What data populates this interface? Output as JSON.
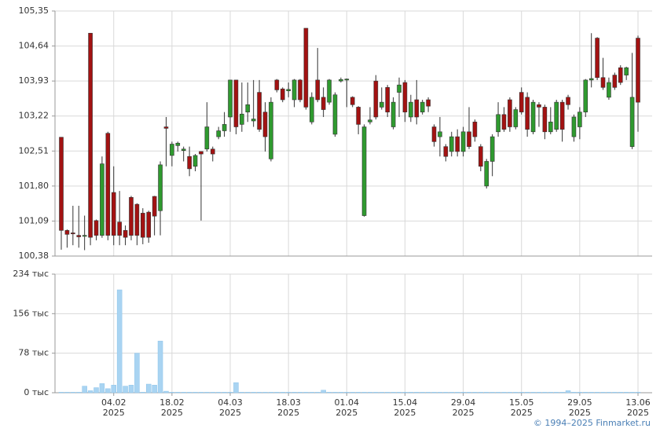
{
  "chart_data": {
    "type": "candlestick",
    "categories": [
      null,
      null,
      null,
      null,
      null,
      null,
      null,
      null,
      null,
      "04.02\n2025",
      null,
      null,
      null,
      null,
      null,
      null,
      null,
      null,
      null,
      "18.02\n2025",
      null,
      null,
      null,
      null,
      null,
      null,
      null,
      null,
      null,
      "04.03\n2025",
      null,
      null,
      null,
      null,
      null,
      null,
      null,
      null,
      null,
      "18.03\n2025",
      null,
      null,
      null,
      null,
      null,
      null,
      null,
      null,
      null,
      "01.04\n2025",
      null,
      null,
      null,
      null,
      null,
      null,
      null,
      null,
      null,
      "15.04\n2025",
      null,
      null,
      null,
      null,
      null,
      null,
      null,
      null,
      null,
      "29.04\n2025",
      null,
      null,
      null,
      null,
      null,
      null,
      null,
      null,
      null,
      "15.05\n2025",
      null,
      null,
      null,
      null,
      null,
      null,
      null,
      null,
      null,
      "29.05\n2025",
      null,
      null,
      null,
      null,
      null,
      null,
      null,
      null,
      null,
      "13.06\n2025"
    ],
    "open": [
      102.79,
      100.9,
      100.85,
      100.8,
      100.78,
      104.9,
      101.1,
      100.8,
      102.87,
      101.67,
      101.07,
      100.9,
      101.57,
      101.43,
      101.25,
      101.27,
      101.59,
      101.3,
      103.0,
      102.42,
      102.62,
      102.52,
      102.4,
      102.2,
      102.5,
      102.55,
      102.55,
      102.8,
      102.92,
      103.2,
      103.95,
      103.05,
      103.3,
      103.12,
      103.7,
      103.3,
      102.35,
      103.95,
      103.77,
      103.73,
      103.55,
      103.95,
      105.0,
      103.1,
      103.95,
      103.6,
      103.5,
      102.85,
      103.93,
      103.95,
      103.6,
      103.4,
      101.2,
      103.1,
      103.93,
      103.4,
      103.8,
      103.0,
      103.7,
      103.9,
      103.2,
      103.55,
      103.3,
      103.55,
      103.0,
      102.8,
      102.6,
      102.5,
      102.8,
      102.5,
      102.9,
      103.1,
      102.6,
      101.8,
      102.3,
      102.9,
      103.25,
      103.55,
      103.0,
      103.7,
      103.6,
      102.9,
      103.45,
      103.4,
      102.9,
      102.95,
      103.5,
      103.6,
      102.8,
      103.0,
      103.3,
      103.95,
      104.8,
      104.0,
      103.6,
      104.05,
      104.2,
      104.05,
      102.6,
      104.8
    ],
    "high": [
      102.79,
      100.92,
      101.4,
      101.4,
      101.2,
      104.9,
      101.12,
      102.4,
      102.9,
      102.2,
      101.7,
      101.0,
      101.6,
      101.45,
      101.35,
      101.3,
      101.6,
      102.3,
      103.2,
      102.7,
      102.7,
      102.6,
      102.6,
      102.45,
      102.5,
      103.5,
      102.6,
      103.0,
      103.3,
      103.95,
      103.95,
      103.9,
      103.9,
      103.95,
      103.95,
      103.5,
      103.6,
      103.97,
      103.8,
      103.9,
      103.97,
      103.97,
      105.0,
      103.7,
      104.6,
      103.8,
      103.97,
      103.7,
      104.0,
      103.98,
      103.62,
      103.42,
      103.05,
      103.4,
      104.05,
      103.8,
      103.85,
      103.6,
      104.0,
      103.95,
      103.65,
      103.95,
      103.55,
      103.6,
      103.05,
      103.2,
      102.65,
      102.9,
      102.95,
      103.0,
      103.4,
      103.15,
      102.65,
      102.35,
      102.85,
      103.5,
      103.4,
      103.6,
      103.4,
      103.8,
      103.7,
      103.55,
      103.5,
      103.45,
      103.4,
      103.55,
      103.55,
      103.65,
      103.25,
      103.4,
      103.97,
      104.9,
      104.82,
      104.4,
      104.0,
      104.1,
      104.25,
      104.22,
      104.5,
      104.85
    ],
    "low": [
      100.51,
      100.55,
      100.6,
      100.55,
      100.5,
      100.6,
      100.7,
      100.75,
      100.7,
      100.6,
      100.6,
      100.6,
      100.7,
      100.6,
      100.62,
      100.65,
      100.8,
      100.8,
      102.2,
      102.2,
      102.5,
      102.3,
      102.0,
      102.1,
      101.1,
      102.5,
      102.3,
      102.75,
      102.8,
      102.9,
      102.85,
      102.9,
      103.1,
      103.0,
      102.9,
      102.5,
      102.3,
      103.7,
      103.5,
      103.6,
      103.4,
      103.5,
      103.35,
      103.05,
      103.5,
      103.2,
      103.45,
      102.8,
      103.9,
      103.4,
      103.4,
      102.85,
      101.18,
      103.05,
      103.15,
      103.35,
      103.2,
      102.95,
      103.2,
      103.1,
      103.1,
      103.05,
      103.25,
      103.3,
      102.6,
      102.4,
      102.3,
      102.4,
      102.4,
      102.4,
      102.55,
      102.7,
      102.1,
      101.75,
      102.0,
      102.8,
      102.9,
      102.9,
      102.95,
      103.25,
      102.8,
      102.85,
      103.0,
      102.75,
      102.85,
      102.9,
      102.7,
      103.35,
      102.7,
      102.75,
      103.2,
      103.8,
      103.95,
      103.75,
      103.55,
      103.75,
      103.85,
      103.95,
      102.55,
      102.9
    ],
    "close": [
      100.9,
      100.82,
      100.83,
      100.77,
      100.8,
      100.76,
      100.8,
      102.25,
      100.8,
      100.8,
      100.8,
      100.76,
      100.8,
      100.8,
      100.76,
      100.76,
      101.19,
      102.23,
      102.97,
      102.65,
      102.67,
      102.55,
      102.15,
      102.42,
      102.45,
      103.0,
      102.45,
      102.92,
      103.05,
      103.95,
      103.0,
      103.26,
      103.45,
      103.16,
      102.95,
      102.8,
      103.5,
      103.75,
      103.55,
      103.76,
      103.95,
      103.55,
      103.4,
      103.6,
      103.55,
      103.35,
      103.95,
      103.65,
      103.96,
      103.97,
      103.45,
      103.05,
      103.0,
      103.14,
      103.2,
      103.5,
      103.3,
      103.5,
      103.85,
      103.3,
      103.5,
      103.2,
      103.5,
      103.42,
      102.7,
      102.9,
      102.4,
      102.8,
      102.5,
      102.9,
      102.6,
      102.8,
      102.2,
      102.3,
      102.8,
      103.25,
      102.95,
      103.0,
      103.35,
      103.3,
      102.95,
      103.5,
      103.4,
      102.9,
      103.1,
      103.5,
      102.95,
      103.45,
      103.2,
      103.3,
      103.95,
      103.98,
      104.0,
      103.8,
      103.9,
      103.8,
      103.9,
      104.2,
      103.6,
      103.5
    ],
    "up_color": "#2f9a2f",
    "down_color": "#a31212",
    "ylim": [
      100.38,
      105.35
    ],
    "yticks": [
      {
        "value": 100.38,
        "label": "100,38"
      },
      {
        "value": 101.09,
        "label": "101,09"
      },
      {
        "value": 101.8,
        "label": "101,80"
      },
      {
        "value": 102.51,
        "label": "102,51"
      },
      {
        "value": 103.22,
        "label": "103,22"
      },
      {
        "value": 103.93,
        "label": "103,93"
      },
      {
        "value": 104.64,
        "label": "104,64"
      },
      {
        "value": 105.35,
        "label": "105,35"
      }
    ],
    "volume": {
      "color": "#a9d4f2",
      "values": [
        1,
        1,
        1,
        1,
        13,
        4,
        10,
        18,
        8,
        15,
        203,
        13,
        15,
        78,
        1,
        17,
        15,
        102,
        3,
        1,
        1,
        1,
        1,
        1,
        1,
        1,
        1,
        1,
        1,
        1,
        20,
        1,
        1,
        1,
        1,
        1,
        1,
        1,
        1,
        1,
        1,
        1,
        1,
        1,
        1,
        5,
        1,
        1,
        1,
        1,
        1,
        1,
        1,
        1,
        1,
        1,
        1,
        1,
        1,
        1,
        1,
        1,
        1,
        1,
        1,
        1,
        1,
        1,
        1,
        1,
        1,
        1,
        1,
        1,
        1,
        1,
        1,
        1,
        1,
        1,
        1,
        1,
        1,
        1,
        1,
        1,
        1,
        4,
        1,
        1,
        1,
        1,
        1,
        1,
        1,
        1,
        1,
        1,
        1,
        1
      ],
      "ylim": [
        0,
        234
      ],
      "yticks": [
        {
          "value": 0,
          "label": "0 тыс"
        },
        {
          "value": 78,
          "label": "78 тыс"
        },
        {
          "value": 156,
          "label": "156 тыс"
        },
        {
          "value": 234,
          "label": "234 тыс"
        }
      ]
    },
    "grid": true,
    "credit": "© 1994–2025 Finmarket.ru"
  }
}
